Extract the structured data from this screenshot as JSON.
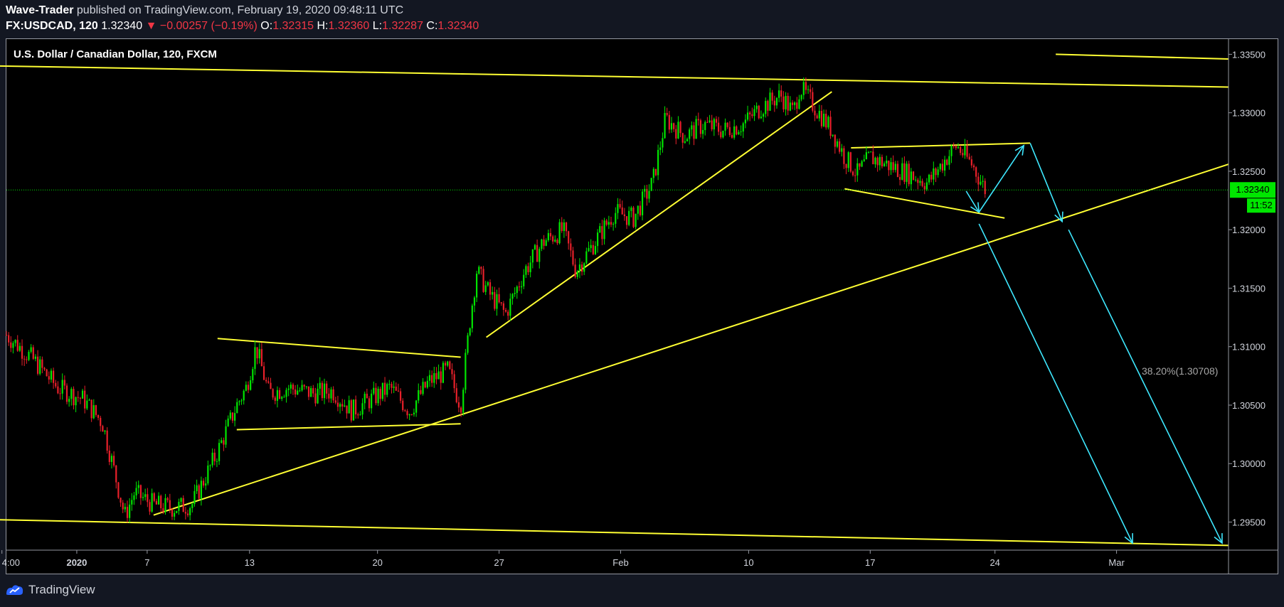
{
  "header": {
    "author": "Wave-Trader",
    "published_text": "published on TradingView.com, February 19, 2020 09:48:11 UTC",
    "symbol": "FX:USDCAD, 120",
    "last": "1.32340",
    "change": "▼ −0.00257 (−0.19%)",
    "open_label": "O:",
    "open": "1.32315",
    "high_label": "H:",
    "high": "1.32360",
    "low_label": "L:",
    "low": "1.32287",
    "close_label": "C:",
    "close": "1.32340"
  },
  "footer": {
    "brand": "TradingView",
    "logo_icon": "tradingview-logo-icon"
  },
  "colors": {
    "background": "#000000",
    "up_candle": "#00e600",
    "down_candle": "#e8202a",
    "trendline": "#ffff33",
    "arrow": "#3ee8ff",
    "price_label_bg": "#00e600",
    "axis_text": "#d1d4dc"
  },
  "chart_data": {
    "type": "candlestick",
    "title": "U.S. Dollar / Canadian Dollar, 120, FXCM",
    "symbol": "FX:USDCAD",
    "interval": "120",
    "xlabel": "",
    "ylabel": "",
    "x_tick_labels": [
      "4:00",
      "2020",
      "7",
      "13",
      "20",
      "27",
      "Feb",
      "10",
      "17",
      "24",
      "Mar"
    ],
    "y_ticks": [
      1.295,
      1.3,
      1.305,
      1.31,
      1.315,
      1.32,
      1.325,
      1.33,
      1.335
    ],
    "y_tick_labels": [
      "1.29500",
      "1.30000",
      "1.30500",
      "1.31000",
      "1.31500",
      "1.32000",
      "1.32500",
      "1.33000",
      "1.33500"
    ],
    "ylim": [
      1.2926,
      1.3363
    ],
    "grid": false,
    "last_price": "1.32340",
    "countdown": "11:52",
    "fib_label": "38.20%(1.30708)",
    "price_path": [
      [
        0,
        1.311
      ],
      [
        4,
        1.309
      ],
      [
        8,
        1.3065
      ],
      [
        12,
        1.3055
      ],
      [
        15,
        1.3035
      ],
      [
        17,
        1.299
      ],
      [
        18.5,
        1.2955
      ],
      [
        20,
        1.2975
      ],
      [
        23,
        1.2965
      ],
      [
        26,
        1.2962
      ],
      [
        29,
        1.2965
      ],
      [
        33,
        1.301
      ],
      [
        36,
        1.305
      ],
      [
        37.5,
        1.3065
      ],
      [
        39,
        1.31
      ],
      [
        41,
        1.306
      ],
      [
        44,
        1.3065
      ],
      [
        48,
        1.306
      ],
      [
        51,
        1.3062
      ],
      [
        54,
        1.3045
      ],
      [
        57,
        1.3055
      ],
      [
        60,
        1.3065
      ],
      [
        63,
        1.3045
      ],
      [
        66,
        1.307
      ],
      [
        69,
        1.308
      ],
      [
        71,
        1.305
      ],
      [
        72.5,
        1.3125
      ],
      [
        73.5,
        1.3165
      ],
      [
        75.5,
        1.3145
      ],
      [
        78,
        1.3128
      ],
      [
        81,
        1.3165
      ],
      [
        84,
        1.319
      ],
      [
        87,
        1.32
      ],
      [
        89,
        1.3165
      ],
      [
        92,
        1.319
      ],
      [
        95,
        1.3215
      ],
      [
        98,
        1.321
      ],
      [
        101,
        1.324
      ],
      [
        103,
        1.3295
      ],
      [
        106,
        1.328
      ],
      [
        109,
        1.329
      ],
      [
        112,
        1.3285
      ],
      [
        115,
        1.329
      ],
      [
        118,
        1.3305
      ],
      [
        121,
        1.3315
      ],
      [
        123,
        1.33
      ],
      [
        124,
        1.3322
      ],
      [
        127,
        1.33
      ],
      [
        129,
        1.3285
      ],
      [
        131,
        1.3262
      ],
      [
        133,
        1.3248
      ],
      [
        135,
        1.3262
      ],
      [
        138,
        1.3255
      ],
      [
        141,
        1.3248
      ],
      [
        144,
        1.324
      ],
      [
        147,
        1.3262
      ],
      [
        148.5,
        1.3272
      ],
      [
        151,
        1.3255
      ],
      [
        153,
        1.3234
      ]
    ],
    "trendlines": [
      {
        "name": "upper-channel",
        "from": [
          -1,
          1.334
        ],
        "to": [
          191,
          1.3322
        ]
      },
      {
        "name": "lower-channel",
        "from": [
          -1,
          1.2952
        ],
        "to": [
          191,
          1.293
        ]
      },
      {
        "name": "top-right-line",
        "from": [
          164,
          1.335
        ],
        "to": [
          191,
          1.3346
        ]
      },
      {
        "name": "major-support",
        "from": [
          23,
          1.2956
        ],
        "to": [
          191,
          1.3256
        ]
      },
      {
        "name": "triangle-top",
        "from": [
          33,
          1.3107
        ],
        "to": [
          71,
          1.3091
        ]
      },
      {
        "name": "triangle-bottom",
        "from": [
          36,
          1.3029
        ],
        "to": [
          71,
          1.3034
        ]
      },
      {
        "name": "rising-support",
        "from": [
          75,
          1.3108
        ],
        "to": [
          129,
          1.3318
        ]
      },
      {
        "name": "flag-top",
        "from": [
          132,
          1.327
        ],
        "to": [
          160,
          1.3274
        ]
      },
      {
        "name": "flag-bottom",
        "from": [
          131,
          1.3235
        ],
        "to": [
          156,
          1.321
        ]
      }
    ],
    "projection_arrows": [
      {
        "from": [
          150,
          1.3233
        ],
        "to": [
          152,
          1.3215
        ]
      },
      {
        "from": [
          152,
          1.3215
        ],
        "to": [
          159,
          1.3272
        ]
      },
      {
        "from": [
          160,
          1.3274
        ],
        "to": [
          165,
          1.3207
        ]
      },
      {
        "from": [
          152,
          1.3205
        ],
        "to": [
          176,
          1.2932
        ]
      },
      {
        "from": [
          166,
          1.32
        ],
        "to": [
          190,
          1.2932
        ]
      }
    ]
  }
}
